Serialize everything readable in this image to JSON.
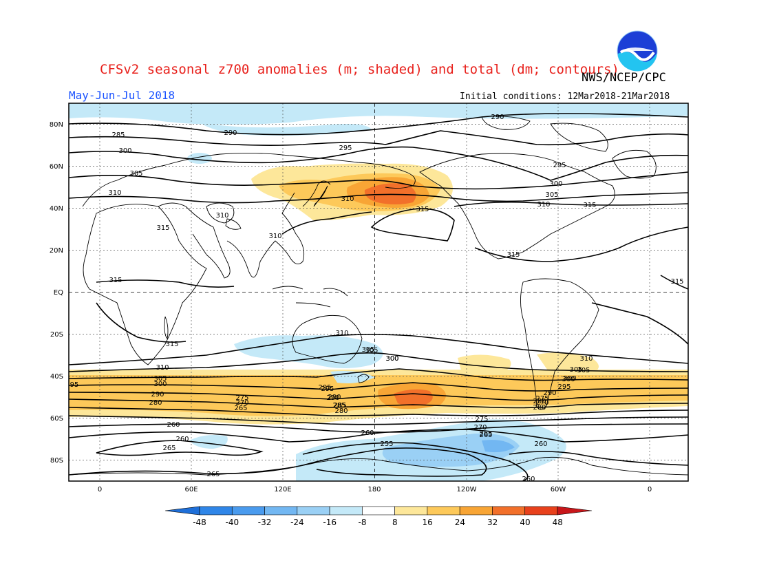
{
  "title": "CFSv2 seasonal z700 anomalies (m; shaded) and total (dm; contours)",
  "agency": "NWS/NCEP/CPC",
  "period": "May-Jun-Jul 2018",
  "initial_conditions": "Initial conditions: 12Mar2018-21Mar2018",
  "logo_text": "NOAA",
  "lat_labels": [
    "80N",
    "60N",
    "40N",
    "20N",
    "EQ",
    "20S",
    "40S",
    "60S",
    "80S"
  ],
  "lon_labels": [
    "0",
    "60E",
    "120E",
    "180",
    "120W",
    "60W",
    "0"
  ],
  "colorbar": {
    "ticks": [
      "-48",
      "-40",
      "-32",
      "-24",
      "-16",
      "-8",
      "8",
      "16",
      "24",
      "32",
      "40",
      "48"
    ],
    "colors": [
      "#1e6fd9",
      "#2f86e8",
      "#4a9bee",
      "#72b7f2",
      "#9ad0f5",
      "#c4e9f8",
      "#ffffff",
      "#fde79a",
      "#fdc95a",
      "#f8a535",
      "#f2702a",
      "#e8411c",
      "#c8161a"
    ]
  },
  "contour_labels": [
    {
      "text": "290"
    },
    {
      "text": "290"
    },
    {
      "text": "285"
    },
    {
      "text": "295"
    },
    {
      "text": "300"
    },
    {
      "text": "305"
    },
    {
      "text": "295"
    },
    {
      "text": "300"
    },
    {
      "text": "305"
    },
    {
      "text": "310"
    },
    {
      "text": "310"
    },
    {
      "text": "310"
    },
    {
      "text": "310"
    },
    {
      "text": "310"
    },
    {
      "text": "315"
    },
    {
      "text": "315"
    },
    {
      "text": "315"
    },
    {
      "text": "315"
    },
    {
      "text": "315"
    },
    {
      "text": "315"
    },
    {
      "text": "315"
    },
    {
      "text": "310"
    },
    {
      "text": "305"
    },
    {
      "text": "300"
    },
    {
      "text": "310"
    },
    {
      "text": "305"
    },
    {
      "text": "300"
    },
    {
      "text": "295"
    },
    {
      "text": "295"
    },
    {
      "text": "290"
    },
    {
      "text": "285"
    },
    {
      "text": "280"
    },
    {
      "text": "275"
    },
    {
      "text": "270"
    },
    {
      "text": "265"
    },
    {
      "text": "260"
    },
    {
      "text": "260"
    },
    {
      "text": "265"
    },
    {
      "text": "265"
    },
    {
      "text": "255"
    },
    {
      "text": "260"
    },
    {
      "text": "260"
    },
    {
      "text": "305"
    },
    {
      "text": "300"
    },
    {
      "text": "290"
    },
    {
      "text": "280"
    },
    {
      "text": "275"
    },
    {
      "text": "270"
    },
    {
      "text": "265"
    },
    {
      "text": "260"
    },
    {
      "text": "310"
    },
    {
      "text": "305"
    },
    {
      "text": "300"
    },
    {
      "text": "295"
    },
    {
      "text": "290"
    },
    {
      "text": "285"
    },
    {
      "text": "280"
    },
    {
      "text": "95"
    },
    {
      "text": "305"
    },
    {
      "text": "300"
    },
    {
      "text": "290"
    },
    {
      "text": "280"
    },
    {
      "text": "275"
    },
    {
      "text": "270"
    },
    {
      "text": "265"
    }
  ]
}
